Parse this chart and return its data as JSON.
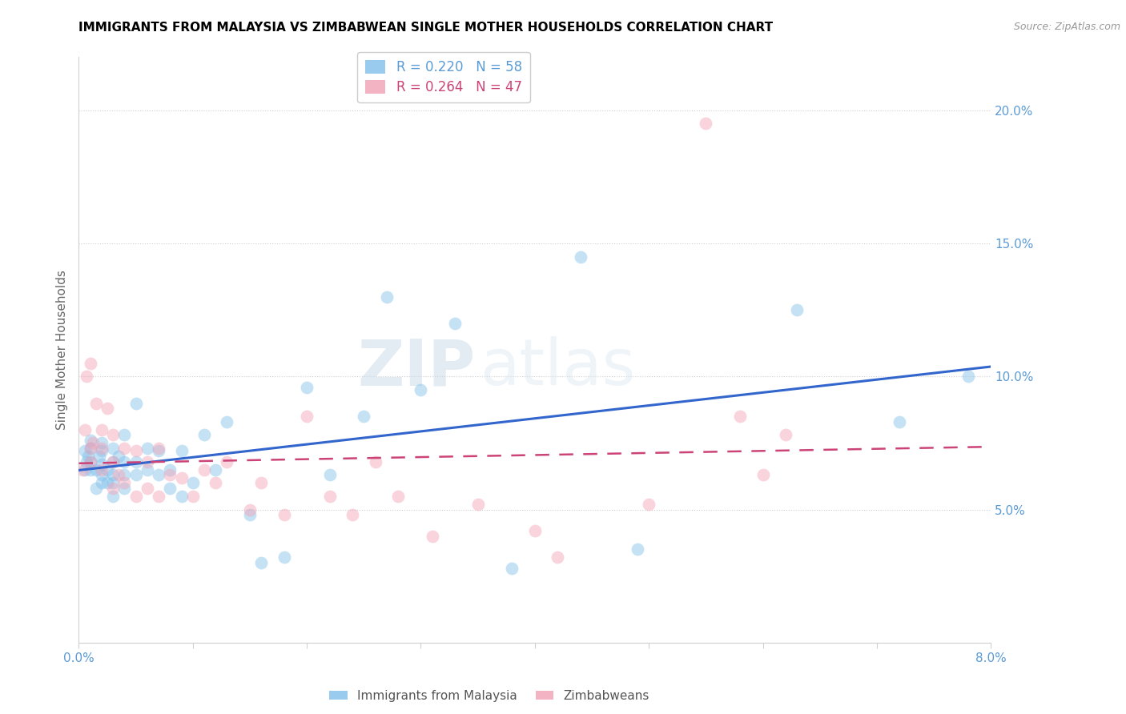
{
  "title": "IMMIGRANTS FROM MALAYSIA VS ZIMBABWEAN SINGLE MOTHER HOUSEHOLDS CORRELATION CHART",
  "source": "Source: ZipAtlas.com",
  "ylabel": "Single Mother Households",
  "xlim": [
    0.0,
    0.08
  ],
  "ylim": [
    0.0,
    0.22
  ],
  "xticks": [
    0.0,
    0.01,
    0.02,
    0.03,
    0.04,
    0.05,
    0.06,
    0.07,
    0.08
  ],
  "yticks": [
    0.0,
    0.05,
    0.1,
    0.15,
    0.2
  ],
  "blue_label": "Immigrants from Malaysia",
  "pink_label": "Zimbabweans",
  "blue_R": 0.22,
  "blue_N": 58,
  "pink_R": 0.264,
  "pink_N": 47,
  "blue_color": "#7fbfea",
  "pink_color": "#f2a0b5",
  "trend_blue_color": "#3366cc",
  "trend_pink_color": "#cc4477",
  "blue_x": [
    0.0005,
    0.0005,
    0.0007,
    0.0008,
    0.001,
    0.001,
    0.001,
    0.001,
    0.0015,
    0.0015,
    0.0018,
    0.002,
    0.002,
    0.002,
    0.002,
    0.002,
    0.0025,
    0.0025,
    0.003,
    0.003,
    0.003,
    0.003,
    0.003,
    0.0035,
    0.004,
    0.004,
    0.004,
    0.004,
    0.005,
    0.005,
    0.005,
    0.006,
    0.006,
    0.007,
    0.007,
    0.008,
    0.008,
    0.009,
    0.009,
    0.01,
    0.011,
    0.012,
    0.013,
    0.015,
    0.016,
    0.018,
    0.02,
    0.022,
    0.025,
    0.027,
    0.03,
    0.033,
    0.038,
    0.044,
    0.049,
    0.063,
    0.072,
    0.078
  ],
  "blue_y": [
    0.065,
    0.072,
    0.068,
    0.07,
    0.065,
    0.068,
    0.073,
    0.076,
    0.058,
    0.065,
    0.07,
    0.06,
    0.063,
    0.067,
    0.072,
    0.075,
    0.06,
    0.065,
    0.055,
    0.06,
    0.063,
    0.068,
    0.073,
    0.07,
    0.058,
    0.063,
    0.068,
    0.078,
    0.063,
    0.068,
    0.09,
    0.065,
    0.073,
    0.063,
    0.072,
    0.058,
    0.065,
    0.055,
    0.072,
    0.06,
    0.078,
    0.065,
    0.083,
    0.048,
    0.03,
    0.032,
    0.096,
    0.063,
    0.085,
    0.13,
    0.095,
    0.12,
    0.028,
    0.145,
    0.035,
    0.125,
    0.083,
    0.1
  ],
  "pink_x": [
    0.0003,
    0.0005,
    0.0007,
    0.001,
    0.001,
    0.001,
    0.0012,
    0.0015,
    0.002,
    0.002,
    0.002,
    0.0025,
    0.003,
    0.003,
    0.003,
    0.0035,
    0.004,
    0.004,
    0.005,
    0.005,
    0.006,
    0.006,
    0.007,
    0.007,
    0.008,
    0.009,
    0.01,
    0.011,
    0.012,
    0.013,
    0.015,
    0.016,
    0.018,
    0.02,
    0.022,
    0.024,
    0.026,
    0.028,
    0.031,
    0.035,
    0.04,
    0.042,
    0.05,
    0.055,
    0.058,
    0.06,
    0.062
  ],
  "pink_y": [
    0.065,
    0.08,
    0.1,
    0.068,
    0.073,
    0.105,
    0.075,
    0.09,
    0.065,
    0.073,
    0.08,
    0.088,
    0.058,
    0.068,
    0.078,
    0.063,
    0.06,
    0.073,
    0.055,
    0.072,
    0.058,
    0.068,
    0.055,
    0.073,
    0.063,
    0.062,
    0.055,
    0.065,
    0.06,
    0.068,
    0.05,
    0.06,
    0.048,
    0.085,
    0.055,
    0.048,
    0.068,
    0.055,
    0.04,
    0.052,
    0.042,
    0.032,
    0.052,
    0.195,
    0.085,
    0.063,
    0.078
  ],
  "watermark_zip": "ZIP",
  "watermark_atlas": "atlas",
  "title_fontsize": 11,
  "axis_color": "#5b9bd5",
  "grid_color": "#d0d0d0",
  "marker_size": 130,
  "marker_alpha": 0.45
}
